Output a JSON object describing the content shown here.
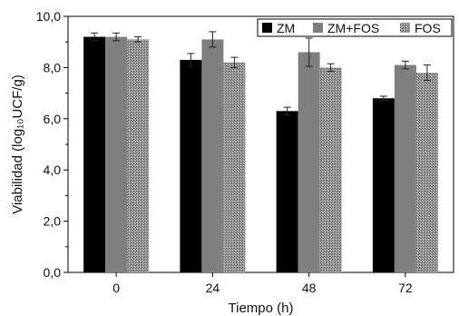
{
  "chart_data": {
    "type": "bar",
    "title": "",
    "xlabel": "Tiempo (h)",
    "ylabel": "Viabilidad (log₁₀UCF/g)",
    "ylim": [
      0,
      10
    ],
    "y_ticks": [
      "0,0",
      "2,0",
      "4,0",
      "6,0",
      "8,0",
      "10,0"
    ],
    "categories": [
      "0",
      "24",
      "48",
      "72"
    ],
    "series": [
      {
        "name": "ZM",
        "values": [
          9.2,
          8.3,
          6.3,
          6.8
        ],
        "errors": [
          0.15,
          0.25,
          0.15,
          0.08
        ],
        "color": "#000000",
        "pattern": "solid"
      },
      {
        "name": "ZM+FOS",
        "values": [
          9.2,
          9.1,
          8.6,
          8.1
        ],
        "errors": [
          0.15,
          0.3,
          0.55,
          0.15
        ],
        "color": "#7f7f7f",
        "pattern": "solid"
      },
      {
        "name": "FOS",
        "values": [
          9.1,
          8.2,
          8.0,
          7.8
        ],
        "errors": [
          0.1,
          0.2,
          0.15,
          0.3
        ],
        "color": "#8c8c8c",
        "pattern": "dotted"
      }
    ],
    "legend_position": "top-right",
    "grid": false
  }
}
